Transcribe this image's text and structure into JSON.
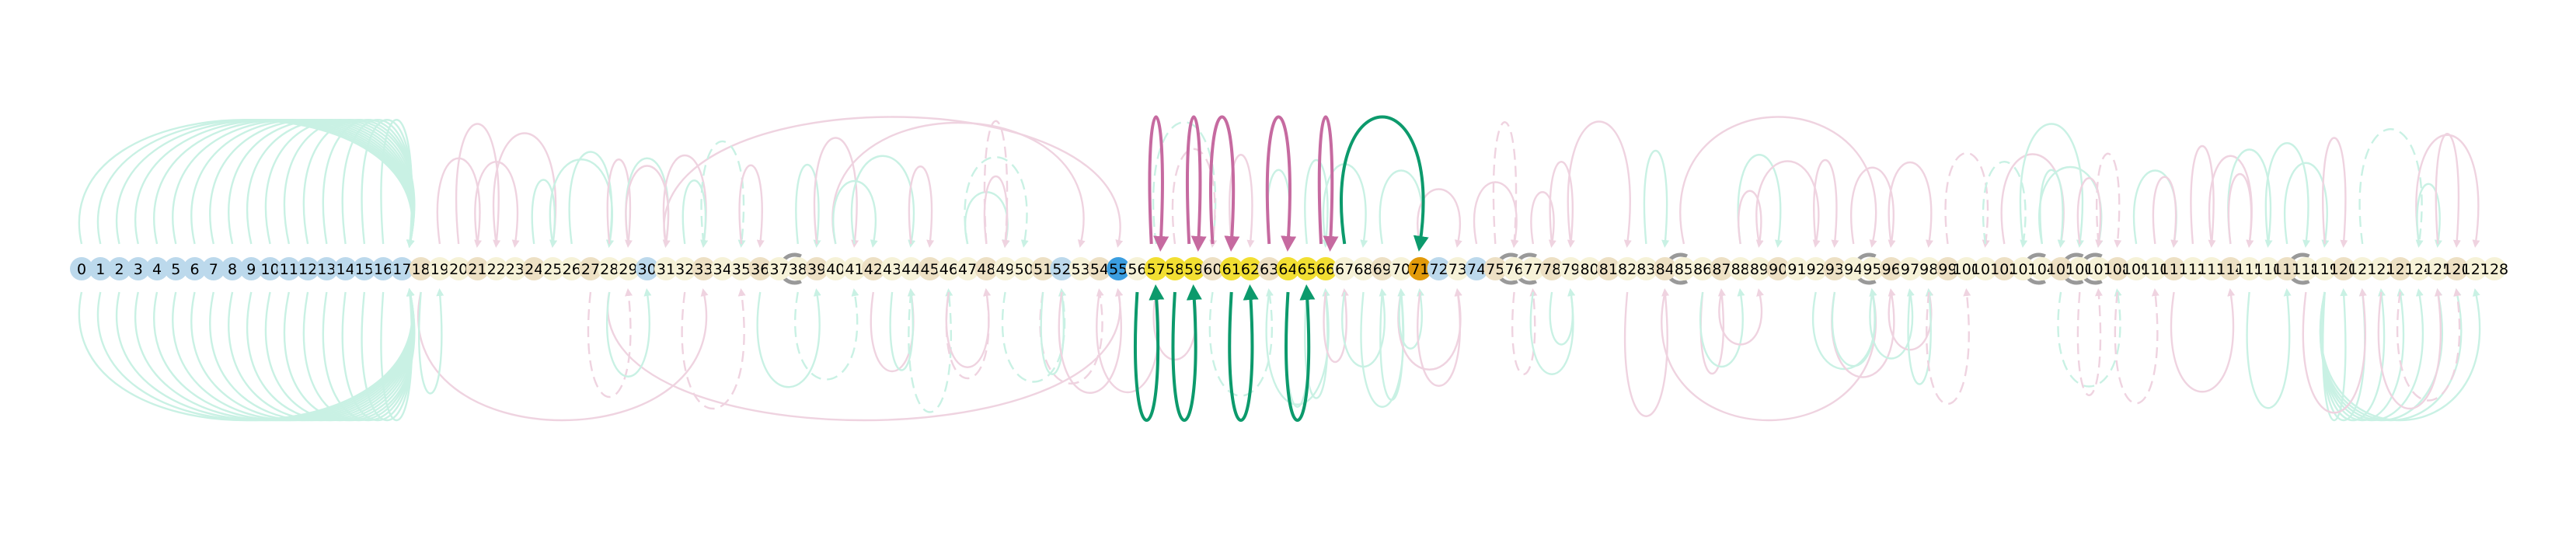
{
  "diagram": {
    "node_count": 129,
    "highlight_nodes": [
      55,
      57,
      58,
      59,
      61,
      62,
      64,
      65,
      66,
      71
    ],
    "special_nodes": [
      {
        "id": 55,
        "kind": "blue-dot",
        "color": "#3b9ee0"
      },
      {
        "id": 57,
        "kind": "yellow-ring",
        "color": "#f2df32"
      },
      {
        "id": 58,
        "kind": "yellow-ring",
        "color": "#f2df32"
      },
      {
        "id": 59,
        "kind": "yellow-ring",
        "color": "#f2df32"
      },
      {
        "id": 61,
        "kind": "yellow-ring",
        "color": "#f2df32"
      },
      {
        "id": 62,
        "kind": "yellow-ring",
        "color": "#f2df32"
      },
      {
        "id": 64,
        "kind": "yellow-ring",
        "color": "#f2df32"
      },
      {
        "id": 65,
        "kind": "yellow-ring",
        "color": "#f2df32"
      },
      {
        "id": 66,
        "kind": "yellow-ring",
        "color": "#f2df32"
      },
      {
        "id": 71,
        "kind": "orange-dot",
        "color": "#e29a0a"
      }
    ],
    "loop_nodes": [
      38,
      76,
      77,
      85,
      95,
      104,
      106,
      107,
      118
    ],
    "blue_group_nodes": [
      0,
      1,
      2,
      3,
      4,
      5,
      6,
      7,
      8,
      9,
      10,
      11,
      12,
      13,
      14,
      15,
      16,
      17,
      30,
      52,
      72,
      74
    ],
    "colors": {
      "node_blue": "#bcd9ec",
      "node_beige": "#ede0c4",
      "node_cream": "#f6f2d8",
      "edge_mint": "#c9f1e4",
      "edge_pink": "#efd3e0",
      "edge_green_bold": "#0c9a6c",
      "edge_magenta_bold": "#c66aa0",
      "loop_gray": "#999999"
    },
    "icon_names": [
      "self-loop-icon",
      "arrowhead-icon"
    ],
    "bold_arcs_above": [
      {
        "from": 57,
        "to": 57,
        "color": "magenta"
      },
      {
        "from": 59,
        "to": 59,
        "color": "magenta"
      },
      {
        "from": 60,
        "to": 61,
        "color": "magenta"
      },
      {
        "from": 63,
        "to": 64,
        "color": "magenta"
      },
      {
        "from": 66,
        "to": 66,
        "color": "magenta"
      },
      {
        "from": 67,
        "to": 71,
        "color": "green"
      }
    ],
    "bold_arcs_below": [
      {
        "from": 56,
        "to": 57,
        "color": "green"
      },
      {
        "from": 58,
        "to": 59,
        "color": "green"
      },
      {
        "from": 61,
        "to": 62,
        "color": "green"
      },
      {
        "from": 64,
        "to": 65,
        "color": "green"
      }
    ]
  }
}
